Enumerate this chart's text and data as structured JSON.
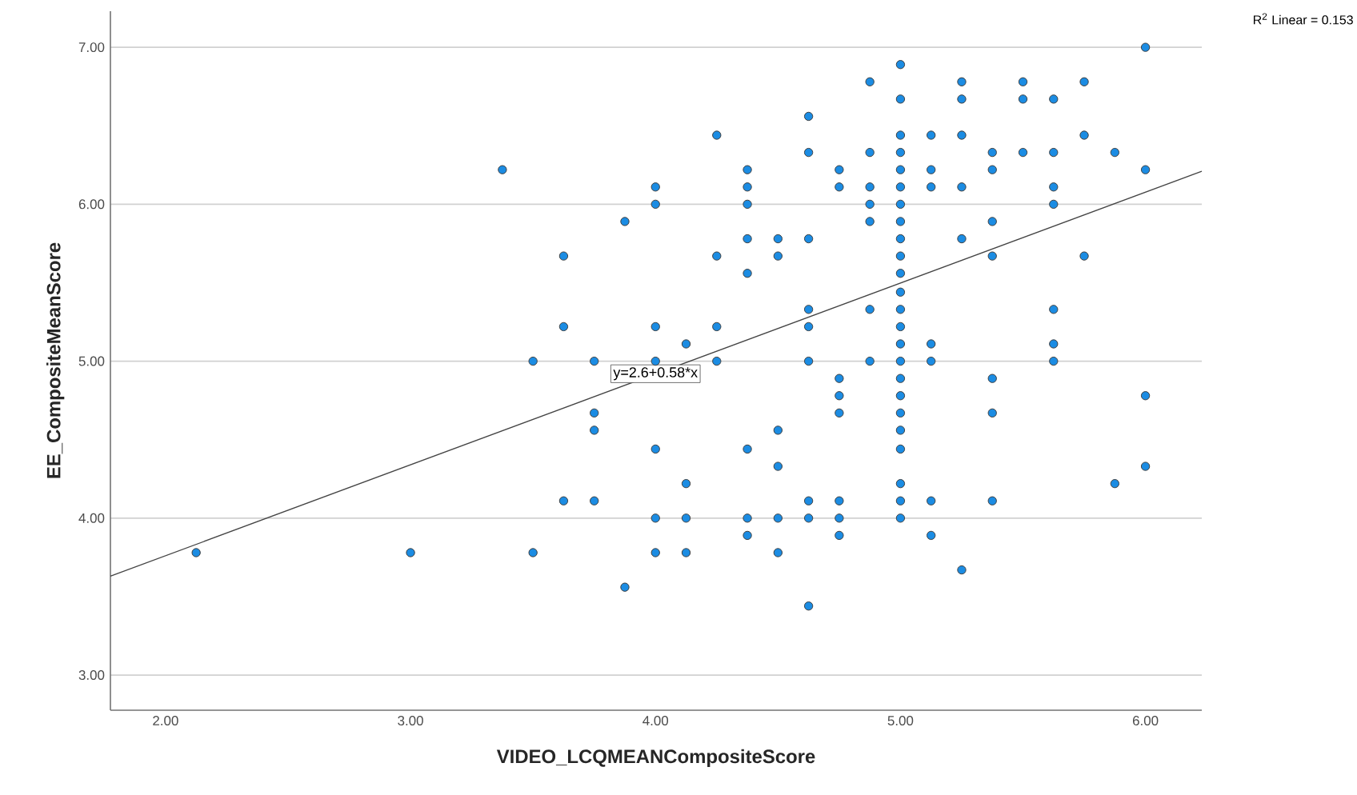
{
  "chart_data": {
    "type": "scatter",
    "xlabel": "VIDEO_LCQMEANCompositeScore",
    "ylabel": "EE_CompositeMeanScore",
    "xlim": [
      1.775,
      6.23
    ],
    "ylim": [
      2.776,
      7.23
    ],
    "xticks": [
      {
        "value": 2,
        "label": "2.00"
      },
      {
        "value": 3,
        "label": "3.00"
      },
      {
        "value": 4,
        "label": "4.00"
      },
      {
        "value": 5,
        "label": "5.00"
      },
      {
        "value": 6,
        "label": "6.00"
      }
    ],
    "yticks": [
      {
        "value": 3,
        "label": "3.00"
      },
      {
        "value": 4,
        "label": "4.00"
      },
      {
        "value": 5,
        "label": "5.00"
      },
      {
        "value": 6,
        "label": "6.00"
      },
      {
        "value": 7,
        "label": "7.00"
      }
    ],
    "grid": "y",
    "marker": "circle",
    "series": [
      {
        "color": "#1b8ce3",
        "x": [
          2.125,
          3.0,
          3.375,
          3.5,
          3.5,
          3.625,
          3.625,
          3.625,
          3.75,
          3.75,
          3.75,
          3.75,
          3.875,
          3.875,
          4.0,
          4.0,
          4.0,
          4.0,
          4.0,
          4.0,
          4.0,
          4.125,
          4.125,
          4.125,
          4.125,
          4.25,
          4.25,
          4.25,
          4.25,
          4.375,
          4.375,
          4.375,
          4.375,
          4.375,
          4.375,
          4.375,
          4.375,
          4.5,
          4.5,
          4.5,
          4.5,
          4.5,
          4.5,
          4.625,
          4.625,
          4.625,
          4.625,
          4.625,
          4.625,
          4.625,
          4.625,
          4.625,
          4.75,
          4.75,
          4.75,
          4.75,
          4.75,
          4.75,
          4.75,
          4.75,
          4.875,
          4.875,
          4.875,
          4.875,
          4.875,
          4.875,
          4.875,
          5.0,
          5.0,
          5.0,
          5.0,
          5.0,
          5.0,
          5.0,
          5.0,
          5.0,
          5.0,
          5.0,
          5.0,
          5.0,
          5.0,
          5.0,
          5.0,
          5.0,
          5.0,
          5.0,
          5.0,
          5.0,
          5.0,
          5.0,
          5.0,
          5.125,
          5.125,
          5.125,
          5.125,
          5.125,
          5.125,
          5.125,
          5.25,
          5.25,
          5.25,
          5.25,
          5.25,
          5.25,
          5.375,
          5.375,
          5.375,
          5.375,
          5.375,
          5.375,
          5.375,
          5.5,
          5.5,
          5.5,
          5.625,
          5.625,
          5.625,
          5.625,
          5.625,
          5.625,
          5.625,
          5.75,
          5.75,
          5.75,
          5.875,
          5.875,
          6.0,
          6.0,
          6.0,
          6.0
        ],
        "values": [
          3.78,
          3.78,
          6.22,
          5.0,
          3.78,
          5.67,
          5.22,
          4.11,
          5.0,
          4.67,
          4.56,
          4.11,
          5.89,
          3.56,
          6.11,
          6.0,
          5.22,
          5.0,
          4.44,
          4.0,
          3.78,
          5.11,
          4.22,
          4.0,
          3.78,
          6.44,
          5.67,
          5.22,
          5.0,
          6.22,
          6.11,
          6.0,
          5.78,
          5.56,
          4.44,
          4.0,
          3.89,
          5.78,
          5.67,
          4.56,
          4.33,
          4.0,
          3.78,
          6.56,
          6.33,
          5.78,
          5.33,
          5.22,
          5.0,
          4.11,
          4.0,
          3.44,
          6.22,
          6.11,
          4.89,
          4.78,
          4.67,
          4.11,
          4.0,
          3.89,
          6.78,
          6.33,
          6.11,
          6.0,
          5.89,
          5.33,
          5.0,
          6.89,
          6.67,
          6.44,
          6.33,
          6.22,
          6.11,
          6.0,
          5.89,
          5.78,
          5.67,
          5.56,
          5.44,
          5.33,
          5.22,
          5.11,
          5.0,
          4.89,
          4.78,
          4.67,
          4.56,
          4.44,
          4.22,
          4.11,
          4.0,
          6.44,
          6.22,
          6.11,
          5.11,
          5.0,
          4.11,
          3.89,
          6.78,
          6.67,
          6.44,
          6.11,
          5.78,
          3.67,
          6.33,
          6.22,
          5.89,
          5.67,
          4.89,
          4.67,
          4.11,
          6.78,
          6.67,
          6.33,
          6.67,
          6.33,
          6.11,
          6.0,
          5.33,
          5.11,
          5.0,
          6.78,
          6.44,
          5.67,
          6.33,
          4.22,
          7.0,
          6.22,
          4.78,
          4.33
        ]
      },
      {
        "type": "line",
        "color": "#444444",
        "marker": "none",
        "line_style": "solid",
        "x": [
          1.775,
          6.23
        ],
        "values": [
          3.63,
          6.21
        ]
      }
    ],
    "annotations": [
      {
        "text": "y=2.6+0.58*x",
        "x": 4.0,
        "y": 4.92
      },
      "R$^{2}$ Linear = 0.153"
    ]
  }
}
